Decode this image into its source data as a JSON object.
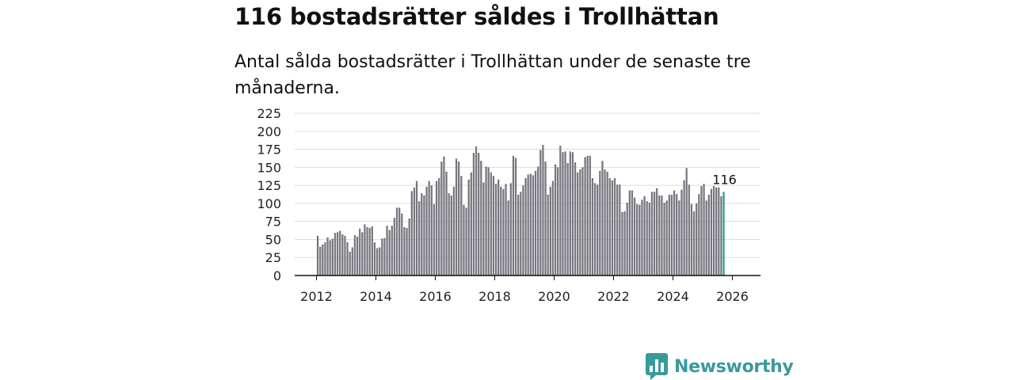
{
  "header": {
    "title": "116 bostadsrätter såldes i Trollhättan",
    "subtitle": "Antal sålda bostadsrätter i Trollhättan under de senaste tre månaderna."
  },
  "brand": {
    "name": "Newsworthy",
    "logo_icon": "newsworthy-bar-logo-icon",
    "color": "#3a9a9a"
  },
  "colors": {
    "bar": "#76767f",
    "highlight": "#2a9d94",
    "grid": "#dddddd",
    "axis": "#111111"
  },
  "chart_data": {
    "type": "bar",
    "title": "Antal sålda bostadsrätter i Trollhättan under de senaste tre månaderna.",
    "xlabel": "",
    "ylabel": "",
    "ylim": [
      0,
      225
    ],
    "yticks": [
      0,
      25,
      50,
      75,
      100,
      125,
      150,
      175,
      200,
      225
    ],
    "xticks": [
      "2012",
      "2014",
      "2016",
      "2018",
      "2020",
      "2022",
      "2024",
      "2026"
    ],
    "x_start": 2012,
    "bars_per_year": 12,
    "grid": true,
    "highlight_label": "116",
    "values": [
      55,
      40,
      43,
      46,
      53,
      49,
      51,
      59,
      60,
      62,
      57,
      55,
      46,
      33,
      39,
      56,
      54,
      65,
      60,
      71,
      67,
      66,
      68,
      46,
      38,
      39,
      51,
      52,
      69,
      63,
      69,
      80,
      94,
      94,
      86,
      67,
      66,
      79,
      117,
      122,
      131,
      103,
      114,
      111,
      123,
      131,
      125,
      99,
      131,
      135,
      158,
      165,
      144,
      114,
      111,
      123,
      162,
      158,
      138,
      98,
      94,
      133,
      143,
      170,
      179,
      170,
      159,
      129,
      151,
      150,
      143,
      138,
      127,
      133,
      123,
      120,
      127,
      104,
      128,
      166,
      163,
      112,
      116,
      125,
      135,
      140,
      141,
      139,
      145,
      151,
      174,
      181,
      158,
      112,
      123,
      131,
      154,
      150,
      180,
      171,
      172,
      156,
      172,
      171,
      157,
      143,
      147,
      150,
      164,
      166,
      166,
      135,
      128,
      126,
      145,
      159,
      147,
      144,
      135,
      132,
      135,
      126,
      126,
      88,
      89,
      101,
      118,
      118,
      108,
      99,
      98,
      105,
      110,
      103,
      101,
      116,
      116,
      121,
      111,
      111,
      101,
      104,
      112,
      112,
      118,
      113,
      104,
      119,
      132,
      149,
      126,
      99,
      89,
      100,
      113,
      124,
      127,
      104,
      112,
      120,
      124,
      122,
      122,
      110,
      116
    ]
  }
}
